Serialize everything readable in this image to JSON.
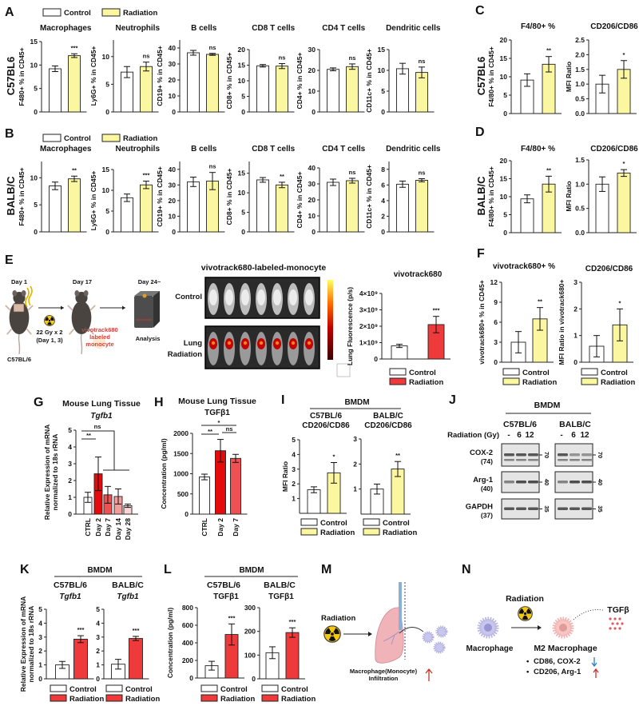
{
  "legend": {
    "control": "Control",
    "radiation": "Radiation"
  },
  "colors": {
    "control": "#ffffff",
    "radiation_yellow": "#fbf7a0",
    "radiation_red": "#ee3a3a",
    "g_day2": "#e30b0b",
    "g_day7": "#ee5151",
    "g_day14": "#f39c9c",
    "g_day28": "#fbd5d5"
  },
  "panels": {
    "A": "A",
    "B": "B",
    "C": "C",
    "D": "D",
    "E": "E",
    "F": "F",
    "G": "G",
    "H": "H",
    "I": "I",
    "J": "J",
    "K": "K",
    "L": "L",
    "M": "M",
    "N": "N"
  },
  "row_labels": {
    "c57": "C57BL6",
    "balb": "BALB/C"
  },
  "panel_e": {
    "day1": "Day 1",
    "day17": "Day 17",
    "day24": "Day 24~",
    "dose": "22 Gy x 2",
    "dose_days": "(Day 1, 3)",
    "strain": "C57BL/6",
    "label1": "vivotrack680",
    "label2": "labeled",
    "label3": "monocyte",
    "analysis": "Analysis",
    "imaging_title": "vivotrack680-labeled-monocyte",
    "row_control": "Control",
    "row_lung": "Lung",
    "row_radiation": "Radiation"
  },
  "headers": {
    "g_title": "Mouse Lung Tissue",
    "g_gene": "Tgfb1",
    "h_title": "Mouse Lung Tissue",
    "h_protein": "TGFβ1",
    "bmdm": "BMDM",
    "c57": "C57BL/6",
    "balb": "BALB/C",
    "cd206_cd86": "CD206/CD86",
    "tgfb1_gene": "Tgfb1",
    "tgfb1_protein": "TGFβ1"
  },
  "panel_j": {
    "title": "BMDM",
    "strain1": "C57BL/6",
    "strain2": "BALB/C",
    "radiation_label": "Radiation (Gy)",
    "lanes": [
      "-",
      "6",
      "12"
    ],
    "blots": [
      {
        "name": "COX-2",
        "kda": "(74)",
        "marker": "70"
      },
      {
        "name": "Arg-1",
        "kda": "(40)",
        "marker": "40"
      },
      {
        "name": "GAPDH",
        "kda": "(37)",
        "marker": "35"
      }
    ]
  },
  "panel_m": {
    "radiation": "Radiation",
    "caption1": "Macrophage(Monocyte)",
    "caption2": "Infiltration"
  },
  "panel_n": {
    "radiation": "Radiation",
    "macrophage": "Macrophage",
    "m2": "M2 Macrophage",
    "tgfb": "TGFβ",
    "bullet1": "CD86, COX-2",
    "bullet2": "CD206, Arg-1",
    "bullet": "•"
  },
  "chart_data": [
    {
      "id": "A1",
      "type": "bar",
      "title": "Macrophages",
      "ylabel": "F480+ % in CD45+",
      "ymax": 15,
      "yticks": [
        0,
        5,
        10,
        15
      ],
      "categories": [
        "Control",
        "Radiation"
      ],
      "values": [
        9.2,
        12.0
      ],
      "errors": [
        0.6,
        0.4
      ],
      "colors": [
        "control",
        "radiation_yellow"
      ],
      "sig": "***"
    },
    {
      "id": "A2",
      "type": "bar",
      "title": "Neutrophils",
      "ylabel": "Ly6G+ % in CD45+",
      "ymax": 13,
      "yticks": [
        0,
        5,
        10
      ],
      "categories": [
        "Control",
        "Radiation"
      ],
      "values": [
        7.2,
        8.2
      ],
      "errors": [
        1.0,
        0.8
      ],
      "colors": [
        "control",
        "radiation_yellow"
      ],
      "sig": "ns"
    },
    {
      "id": "A3",
      "type": "bar",
      "title": "B cells",
      "ylabel": "CD19+ % in CD45+",
      "ymax": 45,
      "yticks": [
        0,
        10,
        20,
        30,
        40
      ],
      "categories": [
        "Control",
        "Radiation"
      ],
      "values": [
        37,
        36
      ],
      "errors": [
        1.5,
        0.6
      ],
      "colors": [
        "control",
        "radiation_yellow"
      ],
      "sig": "ns"
    },
    {
      "id": "A4",
      "type": "bar",
      "title": "CD8 T cells",
      "ylabel": "CD8+ % in CD45+",
      "ymax": 20,
      "yticks": [
        0,
        5,
        10,
        15,
        20
      ],
      "categories": [
        "Control",
        "Radiation"
      ],
      "values": [
        14.8,
        14.7
      ],
      "errors": [
        0.4,
        0.8
      ],
      "colors": [
        "control",
        "radiation_yellow"
      ],
      "sig": "ns"
    },
    {
      "id": "A5",
      "type": "bar",
      "title": "CD4 T cells",
      "ylabel": "CD4+ % in CD45+",
      "ymax": 30,
      "yticks": [
        0,
        10,
        20,
        30
      ],
      "categories": [
        "Control",
        "Radiation"
      ],
      "values": [
        20.5,
        21.8
      ],
      "errors": [
        0.7,
        1.3
      ],
      "colors": [
        "control",
        "radiation_yellow"
      ],
      "sig": "ns"
    },
    {
      "id": "A6",
      "type": "bar",
      "title": "Dendritic cells",
      "ylabel": "CD11c+ % in CD45+",
      "ymax": 15,
      "yticks": [
        0,
        5,
        10,
        15
      ],
      "categories": [
        "Control",
        "Radiation"
      ],
      "values": [
        10.4,
        9.5
      ],
      "errors": [
        1.3,
        1.3
      ],
      "colors": [
        "control",
        "radiation_yellow"
      ],
      "sig": "ns"
    },
    {
      "id": "B1",
      "type": "bar",
      "title": "Macrophages",
      "ylabel": "F480+ % in CD45+",
      "ymax": 13,
      "yticks": [
        0,
        5,
        10
      ],
      "categories": [
        "Control",
        "Radiation"
      ],
      "values": [
        8.5,
        9.8
      ],
      "errors": [
        0.7,
        0.5
      ],
      "colors": [
        "control",
        "radiation_yellow"
      ],
      "sig": "**"
    },
    {
      "id": "B2",
      "type": "bar",
      "title": "Neutrophils",
      "ylabel": "Ly6G+ % in CD45+",
      "ymax": 15,
      "yticks": [
        0,
        5,
        10,
        15
      ],
      "categories": [
        "Control",
        "Radiation"
      ],
      "values": [
        8.2,
        11.3
      ],
      "errors": [
        0.9,
        0.9
      ],
      "colors": [
        "control",
        "radiation_yellow"
      ],
      "sig": "***"
    },
    {
      "id": "B3",
      "type": "bar",
      "title": "B cells",
      "ylabel": "CD19+ % in CD45+",
      "ymax": 45,
      "yticks": [
        0,
        10,
        20,
        30,
        40
      ],
      "categories": [
        "Control",
        "Radiation"
      ],
      "values": [
        32,
        32.5
      ],
      "errors": [
        3,
        5.5
      ],
      "colors": [
        "control",
        "radiation_yellow"
      ],
      "sig": "ns"
    },
    {
      "id": "B4",
      "type": "bar",
      "title": "CD8 T cells",
      "ylabel": "CD8+ % in CD45+",
      "ymax": 18,
      "yticks": [
        0,
        5,
        10,
        15
      ],
      "categories": [
        "Control",
        "Radiation"
      ],
      "values": [
        13.3,
        12.0
      ],
      "errors": [
        0.6,
        0.7
      ],
      "colors": [
        "control",
        "radiation_yellow"
      ],
      "sig": "**"
    },
    {
      "id": "B5",
      "type": "bar",
      "title": "CD4 T cells",
      "ylabel": "CD4+ % in CD45+",
      "ymax": 40,
      "yticks": [
        0,
        10,
        20,
        30,
        40
      ],
      "categories": [
        "Control",
        "Radiation"
      ],
      "values": [
        31,
        32
      ],
      "errors": [
        2,
        1.5
      ],
      "colors": [
        "control",
        "radiation_yellow"
      ],
      "sig": "ns"
    },
    {
      "id": "B6",
      "type": "bar",
      "title": "Dendritic cells",
      "ylabel": "CD11c+ % in CD45+",
      "ymax": 9,
      "yticks": [
        0,
        2,
        4,
        6,
        8
      ],
      "categories": [
        "Control",
        "Radiation"
      ],
      "values": [
        6.1,
        6.6
      ],
      "errors": [
        0.4,
        0.2
      ],
      "colors": [
        "control",
        "radiation_yellow"
      ],
      "sig": "ns"
    },
    {
      "id": "C1",
      "type": "bar",
      "title": "F4/80+ %",
      "ylabel": "F4/80+ % in CD45+",
      "ymax": 20,
      "yticks": [
        0,
        5,
        10,
        15,
        20
      ],
      "categories": [
        "Control",
        "Radiation"
      ],
      "values": [
        9.1,
        13.4
      ],
      "errors": [
        1.7,
        2.1
      ],
      "colors": [
        "control",
        "radiation_yellow"
      ],
      "sig": "**"
    },
    {
      "id": "C2",
      "type": "bar",
      "title": "CD206/CD86",
      "ylabel": "MFI Ratio",
      "ymax": 2.5,
      "yticks": [
        0,
        0.5,
        1,
        1.5,
        2,
        2.5
      ],
      "ytick_labels": [
        "0.0",
        "0.5",
        "1.0",
        "1.5",
        "2.0",
        "2.5"
      ],
      "categories": [
        "Control",
        "Radiation"
      ],
      "values": [
        1.0,
        1.5
      ],
      "errors": [
        0.3,
        0.3
      ],
      "colors": [
        "control",
        "radiation_yellow"
      ],
      "sig": "*"
    },
    {
      "id": "D1",
      "type": "bar",
      "title": "F4/80+ %",
      "ylabel": "F4/80+ % in CD45+",
      "ymax": 20,
      "yticks": [
        0,
        5,
        10,
        15,
        20
      ],
      "categories": [
        "Control",
        "Radiation"
      ],
      "values": [
        9.4,
        13.5
      ],
      "errors": [
        1.1,
        2.2
      ],
      "colors": [
        "control",
        "radiation_yellow"
      ],
      "sig": "**"
    },
    {
      "id": "D2",
      "type": "bar",
      "title": "CD206/CD86",
      "ylabel": "MFI Ratio",
      "ymax": 1.5,
      "yticks": [
        0,
        0.5,
        1,
        1.5
      ],
      "ytick_labels": [
        "0.0",
        "0.5",
        "1.0",
        "1.5"
      ],
      "categories": [
        "Control",
        "Radiation"
      ],
      "values": [
        1.0,
        1.23
      ],
      "errors": [
        0.15,
        0.07
      ],
      "colors": [
        "control",
        "radiation_yellow"
      ],
      "sig": "*"
    },
    {
      "id": "E",
      "type": "bar",
      "title": "vivotrack680",
      "ylabel": "Lung Fluorescence (p/s)",
      "ymax": 4000000000,
      "yticks": [
        0,
        1000000000,
        2000000000,
        3000000000,
        4000000000
      ],
      "ytick_labels": [
        "0",
        "1×10⁹",
        "2×10⁹",
        "3×10⁹",
        "4×10⁹"
      ],
      "categories": [
        "Control",
        "Radiation"
      ],
      "values": [
        800000000,
        2100000000
      ],
      "errors": [
        100000000,
        500000000
      ],
      "colors": [
        "control",
        "radiation_red"
      ],
      "sig": "***"
    },
    {
      "id": "F1",
      "type": "bar",
      "title": "vivotrack680+ %",
      "ylabel": "vivotrack680+ % in CD45+",
      "ymax": 12,
      "yticks": [
        0,
        3,
        6,
        9,
        12
      ],
      "categories": [
        "Control",
        "Radiation"
      ],
      "values": [
        3.0,
        6.5
      ],
      "errors": [
        1.6,
        1.7
      ],
      "colors": [
        "control",
        "radiation_yellow"
      ],
      "sig": "**"
    },
    {
      "id": "F2",
      "type": "bar",
      "title": "CD206/CD86",
      "ylabel": "MFI Ratio in vivotrack680+",
      "ymax": 3,
      "yticks": [
        0,
        1,
        2,
        3
      ],
      "categories": [
        "Control",
        "Radiation"
      ],
      "values": [
        0.6,
        1.4
      ],
      "errors": [
        0.4,
        0.6
      ],
      "colors": [
        "control",
        "radiation_yellow"
      ],
      "sig": "*"
    },
    {
      "id": "G",
      "type": "bar",
      "title": "",
      "ylabel": "Relative Expression of mRNA",
      "ylabel2": "normalized to 18s rRNA",
      "ymax": 5,
      "yticks": [
        0,
        1,
        2,
        3,
        4,
        5
      ],
      "categories": [
        "CTRL",
        "Day 2",
        "Day 7",
        "Day 14",
        "Day 28"
      ],
      "values": [
        1.0,
        2.4,
        1.15,
        1.05,
        0.5
      ],
      "errors": [
        0.3,
        1.0,
        0.5,
        0.45,
        0.1
      ],
      "colors": [
        "control",
        "g_day2",
        "g_day7",
        "g_day14",
        "g_day28"
      ],
      "comparisons": [
        {
          "label": "**"
        },
        {
          "label": "ns"
        }
      ]
    },
    {
      "id": "H",
      "type": "bar",
      "title": "",
      "ylabel": "Concentration (pg/ml)",
      "ymax": 2000,
      "yticks": [
        0,
        500,
        1000,
        1500,
        2000
      ],
      "categories": [
        "CTRL",
        "Day 2",
        "Day 7"
      ],
      "values": [
        920,
        1570,
        1380
      ],
      "errors": [
        70,
        280,
        100
      ],
      "colors": [
        "control",
        "g_day2",
        "g_day7"
      ],
      "comparisons": [
        {
          "label": "*"
        },
        {
          "label": "**"
        },
        {
          "label": "ns"
        }
      ]
    },
    {
      "id": "I1",
      "type": "bar",
      "title": "",
      "ylabel": "MFI Ratio",
      "ymax": 5,
      "yticks": [
        1,
        2,
        3,
        4,
        5
      ],
      "categories": [
        "Control",
        "Radiation"
      ],
      "values": [
        1.6,
        2.75
      ],
      "errors": [
        0.2,
        0.7
      ],
      "colors": [
        "control",
        "radiation_yellow"
      ],
      "sig": "*"
    },
    {
      "id": "I2",
      "type": "bar",
      "title": "",
      "ylabel": "",
      "ymax": 3,
      "yticks": [
        1,
        2,
        3
      ],
      "categories": [
        "Control",
        "Radiation"
      ],
      "values": [
        1.0,
        1.8
      ],
      "errors": [
        0.2,
        0.3
      ],
      "colors": [
        "control",
        "radiation_yellow"
      ],
      "sig": "**"
    },
    {
      "id": "K1",
      "type": "bar",
      "title": "",
      "ylabel": "Relative Expression of mRNA",
      "ylabel2": "normalized to 18s rRNA",
      "ymax": 5,
      "yticks": [
        0,
        1,
        2,
        3,
        4,
        5
      ],
      "categories": [
        "Control",
        "Radiation"
      ],
      "values": [
        1.0,
        2.85
      ],
      "errors": [
        0.25,
        0.25
      ],
      "colors": [
        "control",
        "radiation_red"
      ],
      "sig": "***"
    },
    {
      "id": "K2",
      "type": "bar",
      "title": "",
      "ylabel": "",
      "ymax": 5,
      "yticks": [
        0,
        1,
        2,
        3,
        4,
        5
      ],
      "categories": [
        "Control",
        "Radiation"
      ],
      "values": [
        1.05,
        2.9
      ],
      "errors": [
        0.35,
        0.15
      ],
      "colors": [
        "control",
        "radiation_red"
      ],
      "sig": "***"
    },
    {
      "id": "L1",
      "type": "bar",
      "title": "",
      "ylabel": "Concentration (pg/ml)",
      "ymax": 800,
      "yticks": [
        0,
        200,
        400,
        600,
        800
      ],
      "categories": [
        "Control",
        "Radiation"
      ],
      "values": [
        140,
        495
      ],
      "errors": [
        50,
        120
      ],
      "colors": [
        "control",
        "radiation_red"
      ],
      "sig": "***"
    },
    {
      "id": "L2",
      "type": "bar",
      "title": "",
      "ylabel": "",
      "ymax": 300,
      "yticks": [
        0,
        100,
        200,
        300
      ],
      "categories": [
        "Control",
        "Radiation"
      ],
      "values": [
        110,
        195
      ],
      "errors": [
        25,
        20
      ],
      "colors": [
        "control",
        "radiation_red"
      ],
      "sig": "***"
    }
  ]
}
